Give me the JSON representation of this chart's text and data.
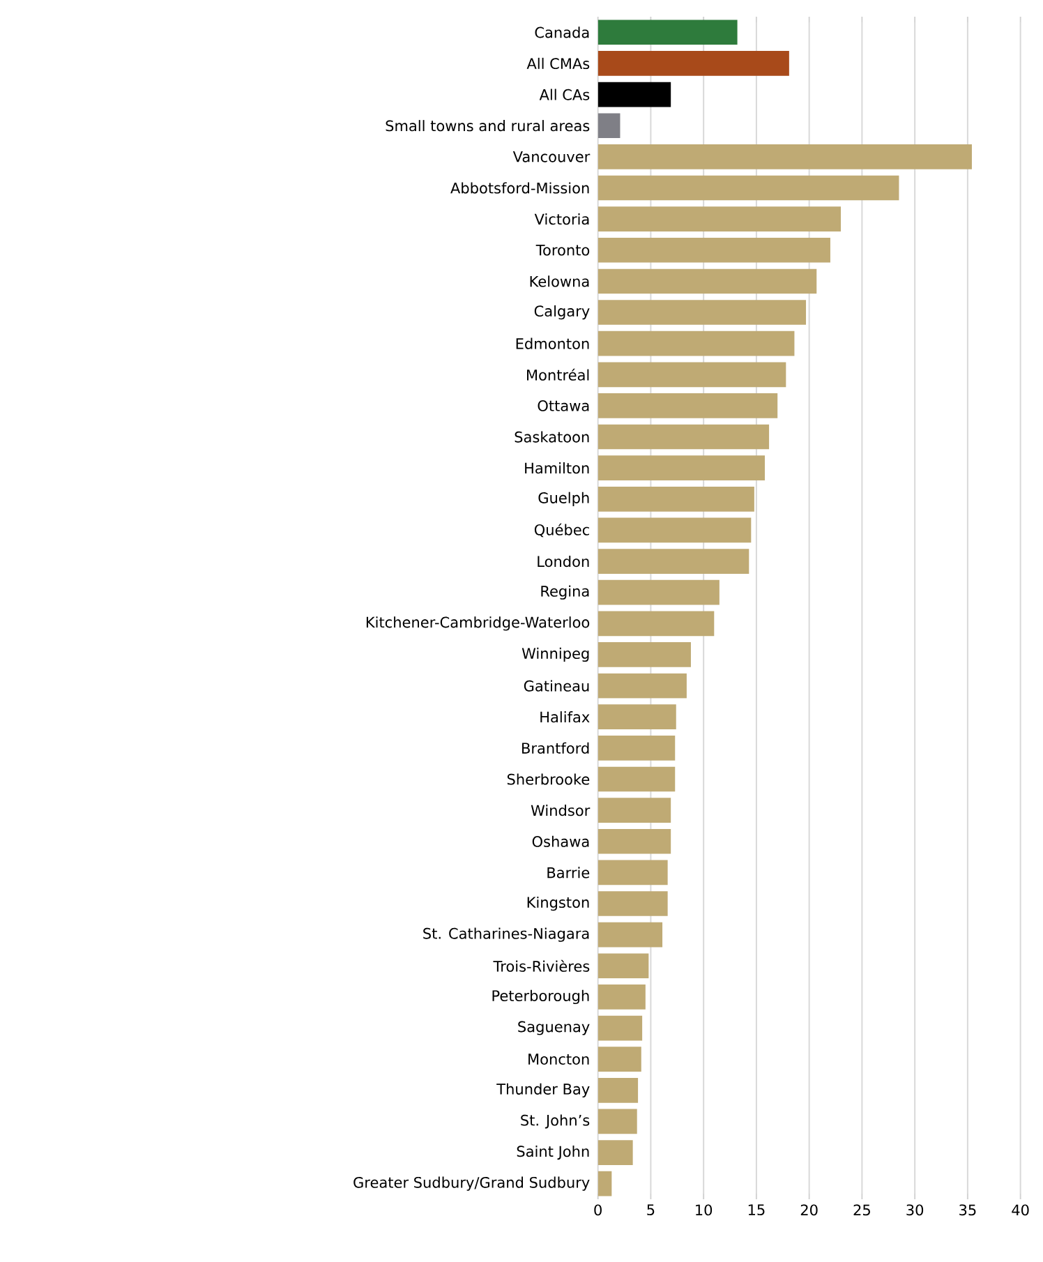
{
  "chart_data": {
    "type": "bar",
    "orientation": "horizontal",
    "categories": [
      "Canada",
      "All CMAs",
      "All CAs",
      "Small towns and rural areas",
      "Vancouver",
      "Abbotsford-Mission",
      "Victoria",
      "Toronto",
      "Kelowna",
      "Calgary",
      "Edmonton",
      "Montréal",
      "Ottawa",
      "Saskatoon",
      "Hamilton",
      "Guelph",
      "Québec",
      "London",
      "Regina",
      "Kitchener-Cambridge-Waterloo",
      "Winnipeg",
      "Gatineau",
      "Halifax",
      "Brantford",
      "Sherbrooke",
      "Windsor",
      "Oshawa",
      "Barrie",
      "Kingston",
      "St. Catharines-Niagara",
      "Trois-Rivières",
      "Peterborough",
      "Saguenay",
      "Moncton",
      "Thunder Bay",
      "St. John’s",
      "Saint John",
      "Greater Sudbury/Grand Sudbury"
    ],
    "values": [
      13.2,
      18.1,
      6.9,
      2.1,
      35.4,
      28.5,
      23.0,
      22.0,
      20.7,
      19.7,
      18.6,
      17.8,
      17.0,
      16.2,
      15.8,
      14.8,
      14.5,
      14.3,
      11.5,
      11.0,
      8.8,
      8.4,
      7.4,
      7.3,
      7.3,
      6.9,
      6.9,
      6.6,
      6.6,
      6.1,
      4.8,
      4.5,
      4.2,
      4.1,
      3.8,
      3.7,
      3.3,
      1.3
    ],
    "colors": [
      "#2e7b3c",
      "#a84a1a",
      "#000000",
      "#7f7f86",
      "#bfaa74",
      "#bfaa74",
      "#bfaa74",
      "#bfaa74",
      "#bfaa74",
      "#bfaa74",
      "#bfaa74",
      "#bfaa74",
      "#bfaa74",
      "#bfaa74",
      "#bfaa74",
      "#bfaa74",
      "#bfaa74",
      "#bfaa74",
      "#bfaa74",
      "#bfaa74",
      "#bfaa74",
      "#bfaa74",
      "#bfaa74",
      "#bfaa74",
      "#bfaa74",
      "#bfaa74",
      "#bfaa74",
      "#bfaa74",
      "#bfaa74",
      "#bfaa74",
      "#bfaa74",
      "#bfaa74",
      "#bfaa74",
      "#bfaa74",
      "#bfaa74",
      "#bfaa74",
      "#bfaa74",
      "#bfaa74"
    ],
    "xlim": [
      0,
      40
    ],
    "xticks": [
      0,
      5,
      10,
      15,
      20,
      25,
      30,
      35,
      40
    ],
    "grid": "x"
  }
}
